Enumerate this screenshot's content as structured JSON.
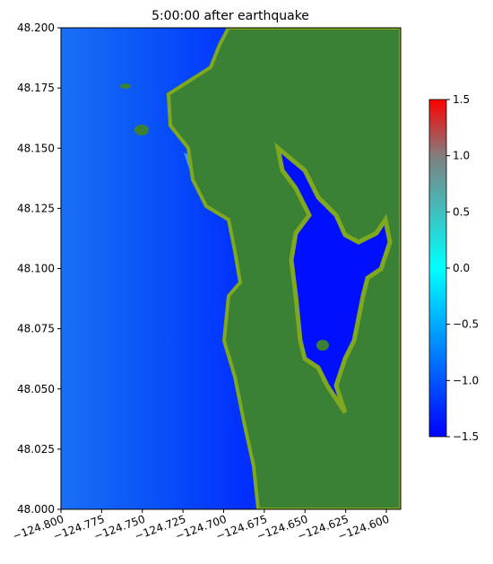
{
  "chart_data": {
    "type": "map",
    "title": "5:00:00 after earthquake",
    "xlim": [
      -124.8,
      -124.5912
    ],
    "ylim": [
      48.0,
      48.2
    ],
    "xticks": [
      {
        "value": -124.8,
        "label": "−124.800"
      },
      {
        "value": -124.775,
        "label": "−124.775"
      },
      {
        "value": -124.75,
        "label": "−124.750"
      },
      {
        "value": -124.725,
        "label": "−124.725"
      },
      {
        "value": -124.7,
        "label": "−124.700"
      },
      {
        "value": -124.675,
        "label": "−124.675"
      },
      {
        "value": -124.65,
        "label": "−124.650"
      },
      {
        "value": -124.625,
        "label": "−124.625"
      },
      {
        "value": -124.6,
        "label": "−124.600"
      }
    ],
    "yticks": [
      {
        "value": 48.0,
        "label": "48.000"
      },
      {
        "value": 48.025,
        "label": "48.025"
      },
      {
        "value": 48.05,
        "label": "48.050"
      },
      {
        "value": 48.075,
        "label": "48.075"
      },
      {
        "value": 48.1,
        "label": "48.100"
      },
      {
        "value": 48.125,
        "label": "48.125"
      },
      {
        "value": 48.15,
        "label": "48.150"
      },
      {
        "value": 48.175,
        "label": "48.175"
      },
      {
        "value": 48.2,
        "label": "48.200"
      }
    ],
    "colorbar": {
      "lim": [
        -1.5,
        1.5
      ],
      "ticks": [
        {
          "value": -1.5,
          "label": "−1.5"
        },
        {
          "value": -1.0,
          "label": "−1.0"
        },
        {
          "value": -0.5,
          "label": "−0.5"
        },
        {
          "value": 0.0,
          "label": "0.0"
        },
        0.5,
        {
          "value": 1.0,
          "label": "1.0"
        },
        1.5
      ]
    }
  }
}
